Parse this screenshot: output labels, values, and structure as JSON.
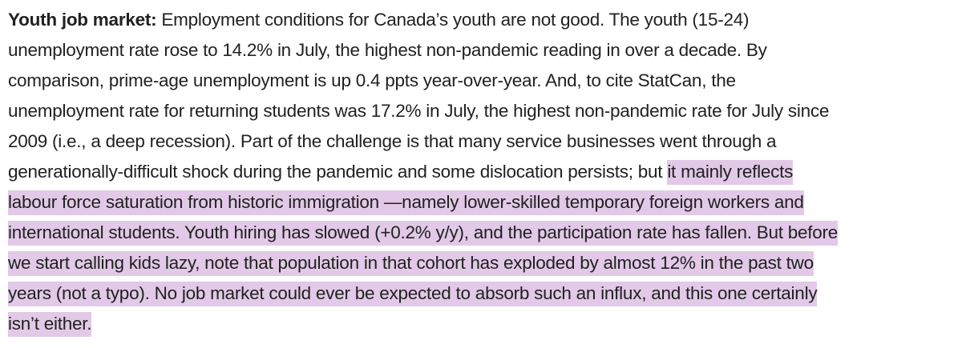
{
  "paragraph": {
    "lead_label": "Youth job market:",
    "highlight_color": "#e2c9e7",
    "lines": [
      {
        "plain": " Employment conditions for Canada’s youth are not good. The youth (15-24)",
        "highlight": ""
      },
      {
        "plain": "unemployment rate rose to 14.2% in July, the highest non-pandemic reading in over a decade. By",
        "highlight": ""
      },
      {
        "plain": "comparison, prime-age unemployment is up 0.4 ppts year-over-year. And, to cite StatCan, the",
        "highlight": ""
      },
      {
        "plain": "unemployment rate for returning students was 17.2% in July, the highest non-pandemic rate for July since",
        "highlight": ""
      },
      {
        "plain": "2009 (i.e., a deep recession). Part of the challenge is that many service businesses went through a",
        "highlight": ""
      },
      {
        "plain": "generationally-difficult shock during the pandemic and some dislocation persists; but ",
        "highlight": "it mainly reflects"
      },
      {
        "plain": "",
        "highlight": "labour force saturation from historic immigration —namely lower-skilled temporary foreign workers and"
      },
      {
        "plain": "",
        "highlight": "international students. Youth hiring has slowed (+0.2% y/y), and the participation rate has fallen. But before"
      },
      {
        "plain": "",
        "highlight": "we start calling kids lazy, note that population in that cohort has exploded by almost 12% in the past two"
      },
      {
        "plain": "",
        "highlight": "years (not a typo). No job market could ever be expected to absorb such an influx, and this one certainly"
      },
      {
        "plain": "",
        "highlight": "isn’t either."
      }
    ]
  }
}
